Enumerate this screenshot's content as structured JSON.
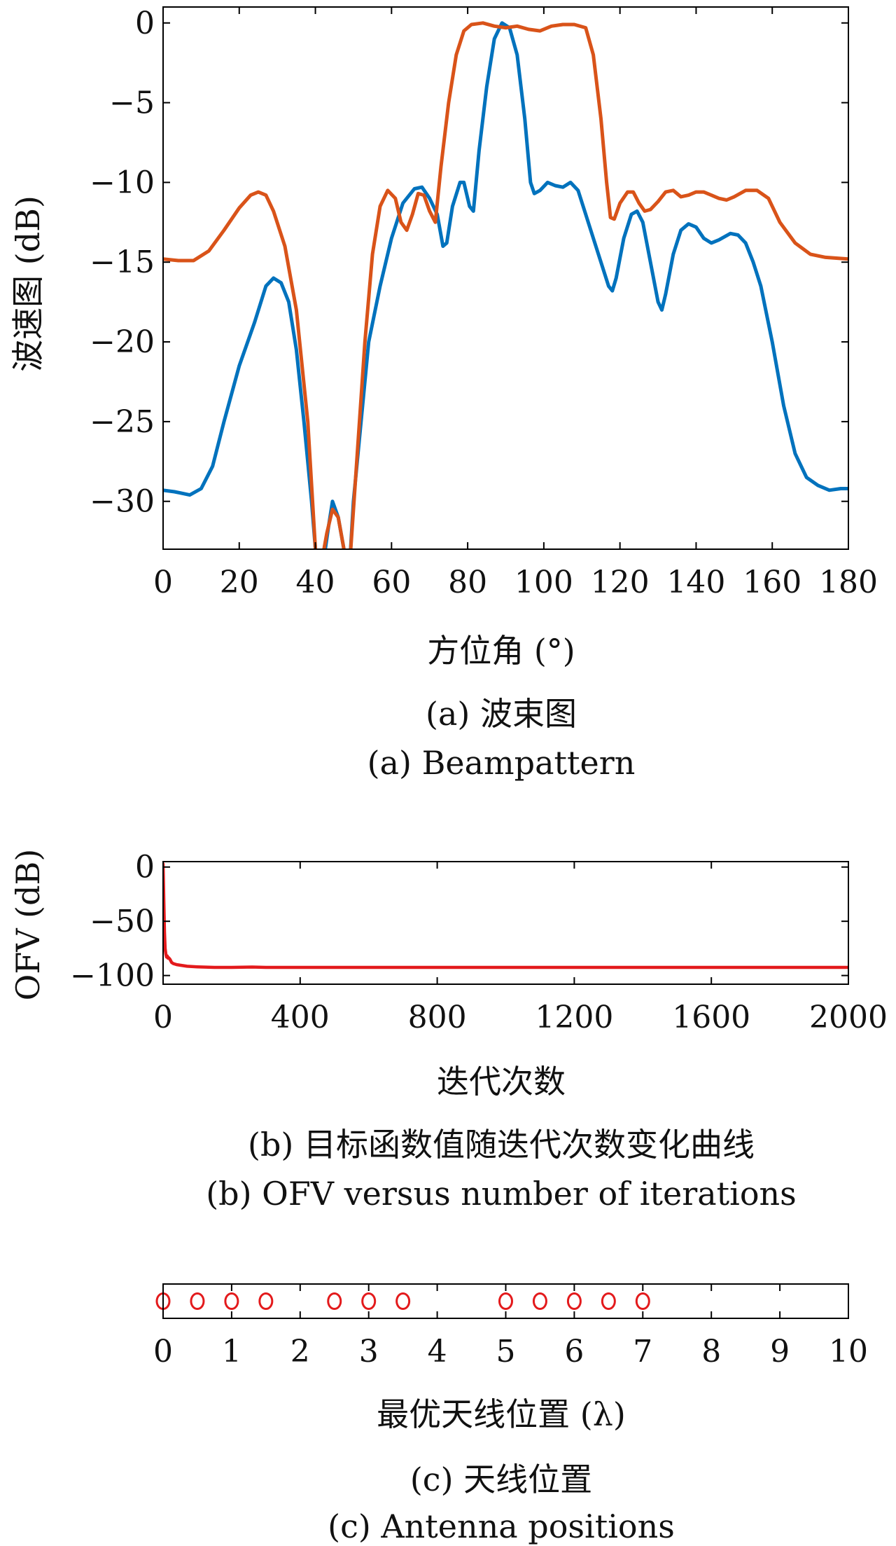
{
  "figure": {
    "panel_a": {
      "caption_cn": "(a) 波束图",
      "caption_en": "(a) Beampattern"
    },
    "panel_b": {
      "caption_cn": "(b) 目标函数值随迭代次数变化曲线",
      "caption_en": "(b) OFV versus number of iterations"
    },
    "panel_c": {
      "caption_cn": "(c) 天线位置",
      "caption_en": "(c) Antenna positions"
    }
  },
  "chart_data": [
    {
      "type": "line",
      "xlabel": "方位角 (°)",
      "ylabel": "波速图 (dB)",
      "xlim": [
        0,
        180
      ],
      "ylim": [
        -33,
        1
      ],
      "xticks": [
        0,
        20,
        40,
        60,
        80,
        100,
        120,
        140,
        160,
        180
      ],
      "yticks": [
        0,
        -5,
        -10,
        -15,
        -20,
        -25,
        -30
      ],
      "grid": false,
      "series": [
        {
          "color": "#0072BD",
          "points": [
            [
              0,
              -29.3
            ],
            [
              3,
              -29.4
            ],
            [
              7,
              -29.6
            ],
            [
              10,
              -29.2
            ],
            [
              13,
              -27.8
            ],
            [
              16,
              -25
            ],
            [
              20,
              -21.5
            ],
            [
              24,
              -18.8
            ],
            [
              27,
              -16.5
            ],
            [
              29,
              -16
            ],
            [
              31,
              -16.3
            ],
            [
              33,
              -17.5
            ],
            [
              35,
              -20.5
            ],
            [
              37,
              -25
            ],
            [
              39,
              -30
            ],
            [
              40,
              -33
            ],
            [
              42,
              -34
            ],
            [
              43.5,
              -31.5
            ],
            [
              44.5,
              -30
            ],
            [
              46,
              -31
            ],
            [
              47.5,
              -33
            ],
            [
              49,
              -34
            ],
            [
              50,
              -30
            ],
            [
              52,
              -25
            ],
            [
              54,
              -20
            ],
            [
              57,
              -16.5
            ],
            [
              60,
              -13.5
            ],
            [
              63,
              -11.3
            ],
            [
              66,
              -10.4
            ],
            [
              68,
              -10.3
            ],
            [
              70,
              -11
            ],
            [
              72,
              -12
            ],
            [
              73.5,
              -14
            ],
            [
              74.5,
              -13.8
            ],
            [
              76,
              -11.5
            ],
            [
              78,
              -10
            ],
            [
              79,
              -10
            ],
            [
              80.5,
              -11.5
            ],
            [
              81.5,
              -11.8
            ],
            [
              83,
              -8
            ],
            [
              85,
              -4
            ],
            [
              87,
              -1
            ],
            [
              89,
              0
            ],
            [
              91,
              -0.3
            ],
            [
              93,
              -2
            ],
            [
              95,
              -6
            ],
            [
              96.5,
              -10
            ],
            [
              97.5,
              -10.7
            ],
            [
              99,
              -10.5
            ],
            [
              101,
              -10
            ],
            [
              103,
              -10.2
            ],
            [
              105,
              -10.3
            ],
            [
              107,
              -10
            ],
            [
              109,
              -10.5
            ],
            [
              111,
              -12
            ],
            [
              113,
              -13.5
            ],
            [
              115,
              -15
            ],
            [
              117,
              -16.5
            ],
            [
              118,
              -16.8
            ],
            [
              119,
              -16
            ],
            [
              121,
              -13.5
            ],
            [
              123,
              -12
            ],
            [
              124.5,
              -11.8
            ],
            [
              126,
              -12.5
            ],
            [
              128,
              -15
            ],
            [
              130,
              -17.5
            ],
            [
              131,
              -18
            ],
            [
              132,
              -17
            ],
            [
              134,
              -14.5
            ],
            [
              136,
              -13
            ],
            [
              138,
              -12.6
            ],
            [
              140,
              -12.8
            ],
            [
              142,
              -13.5
            ],
            [
              144,
              -13.8
            ],
            [
              146,
              -13.6
            ],
            [
              149,
              -13.2
            ],
            [
              151,
              -13.3
            ],
            [
              153,
              -13.8
            ],
            [
              155,
              -15
            ],
            [
              157,
              -16.5
            ],
            [
              160,
              -20
            ],
            [
              163,
              -24
            ],
            [
              166,
              -27
            ],
            [
              169,
              -28.5
            ],
            [
              172,
              -29
            ],
            [
              175,
              -29.3
            ],
            [
              178,
              -29.2
            ],
            [
              180,
              -29.2
            ]
          ]
        },
        {
          "color": "#D95319",
          "points": [
            [
              0,
              -14.8
            ],
            [
              4,
              -14.9
            ],
            [
              8,
              -14.9
            ],
            [
              12,
              -14.3
            ],
            [
              16,
              -13
            ],
            [
              20,
              -11.6
            ],
            [
              23,
              -10.8
            ],
            [
              25,
              -10.6
            ],
            [
              27,
              -10.8
            ],
            [
              29,
              -11.8
            ],
            [
              32,
              -14
            ],
            [
              35,
              -18
            ],
            [
              38,
              -25
            ],
            [
              40,
              -33
            ],
            [
              41.5,
              -34
            ],
            [
              43,
              -32
            ],
            [
              44.5,
              -30.5
            ],
            [
              46,
              -31
            ],
            [
              47.5,
              -33
            ],
            [
              49,
              -34
            ],
            [
              51,
              -27
            ],
            [
              53,
              -20
            ],
            [
              55,
              -14.5
            ],
            [
              57,
              -11.5
            ],
            [
              59,
              -10.5
            ],
            [
              61,
              -11
            ],
            [
              62.5,
              -12.5
            ],
            [
              64,
              -13
            ],
            [
              65.5,
              -12
            ],
            [
              67,
              -10.7
            ],
            [
              68.5,
              -10.8
            ],
            [
              70,
              -11.8
            ],
            [
              71.5,
              -12.5
            ],
            [
              73,
              -9
            ],
            [
              75,
              -5
            ],
            [
              77,
              -2
            ],
            [
              79,
              -0.5
            ],
            [
              81,
              -0.1
            ],
            [
              84,
              0
            ],
            [
              87,
              -0.2
            ],
            [
              90,
              -0.3
            ],
            [
              93,
              -0.2
            ],
            [
              96,
              -0.4
            ],
            [
              99,
              -0.5
            ],
            [
              102,
              -0.2
            ],
            [
              105,
              -0.1
            ],
            [
              108,
              -0.1
            ],
            [
              111,
              -0.3
            ],
            [
              113,
              -2
            ],
            [
              115,
              -6
            ],
            [
              116.5,
              -10
            ],
            [
              117.5,
              -12.2
            ],
            [
              118.5,
              -12.3
            ],
            [
              120,
              -11.3
            ],
            [
              122,
              -10.6
            ],
            [
              123.5,
              -10.6
            ],
            [
              125,
              -11.3
            ],
            [
              126.5,
              -11.8
            ],
            [
              128,
              -11.7
            ],
            [
              130,
              -11.2
            ],
            [
              132,
              -10.6
            ],
            [
              134,
              -10.5
            ],
            [
              136,
              -10.9
            ],
            [
              138,
              -10.8
            ],
            [
              140,
              -10.6
            ],
            [
              142,
              -10.6
            ],
            [
              144,
              -10.8
            ],
            [
              146,
              -11
            ],
            [
              148,
              -11.1
            ],
            [
              150,
              -10.9
            ],
            [
              153,
              -10.5
            ],
            [
              156,
              -10.5
            ],
            [
              159,
              -11
            ],
            [
              162,
              -12.5
            ],
            [
              166,
              -13.8
            ],
            [
              170,
              -14.5
            ],
            [
              174,
              -14.7
            ],
            [
              180,
              -14.8
            ]
          ]
        }
      ]
    },
    {
      "type": "line",
      "xlabel": "迭代次数",
      "ylabel": "OFV (dB)",
      "xlim": [
        0,
        2000
      ],
      "ylim": [
        -108,
        5
      ],
      "xticks": [
        0,
        400,
        800,
        1200,
        1600,
        2000
      ],
      "yticks": [
        0,
        -50,
        -100
      ],
      "grid": false,
      "series": [
        {
          "color": "#E31A1C",
          "points": [
            [
              0,
              3
            ],
            [
              2,
              -30
            ],
            [
              4,
              -60
            ],
            [
              6,
              -75
            ],
            [
              8,
              -80
            ],
            [
              10,
              -83
            ],
            [
              12,
              -82
            ],
            [
              14,
              -84
            ],
            [
              16,
              -83.5
            ],
            [
              20,
              -85
            ],
            [
              25,
              -88
            ],
            [
              30,
              -89
            ],
            [
              40,
              -90
            ],
            [
              50,
              -90.5
            ],
            [
              70,
              -91.5
            ],
            [
              100,
              -92
            ],
            [
              150,
              -92.5
            ],
            [
              200,
              -92.5
            ],
            [
              260,
              -92.2
            ],
            [
              300,
              -92.5
            ],
            [
              400,
              -92.5
            ],
            [
              600,
              -92.5
            ],
            [
              1000,
              -92.5
            ],
            [
              1500,
              -92.5
            ],
            [
              2000,
              -92.5
            ]
          ]
        }
      ]
    },
    {
      "type": "scatter",
      "xlabel": "最优天线位置 (λ)",
      "ylabel": "",
      "xlim": [
        0,
        10
      ],
      "xticks": [
        0,
        1,
        2,
        3,
        4,
        5,
        6,
        7,
        8,
        9,
        10
      ],
      "grid": false,
      "series": [
        {
          "color": "#E31A1C",
          "marker": "circle-open",
          "x": [
            0,
            0.5,
            1,
            1.5,
            2.5,
            3,
            3.5,
            5,
            5.5,
            6,
            6.5,
            7
          ]
        }
      ]
    }
  ]
}
